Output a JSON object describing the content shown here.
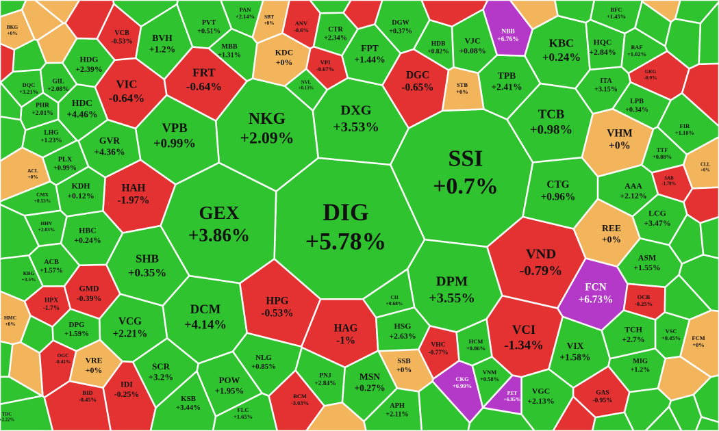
{
  "cells": [
    {
      "ticker": "DIG",
      "change": "+5.78%",
      "color": "#2fc42f"
    },
    {
      "ticker": "SSI",
      "change": "+0.7%",
      "color": "#2fc42f"
    },
    {
      "ticker": "GEX",
      "change": "+3.86%",
      "color": "#2fc42f"
    },
    {
      "ticker": "NKG",
      "change": "+2.09%",
      "color": "#2fc42f"
    },
    {
      "ticker": "DXG",
      "change": "+3.53%",
      "color": "#2fc42f"
    },
    {
      "ticker": "VPB",
      "change": "+0.99%",
      "color": "#2fc42f"
    },
    {
      "ticker": "VIC",
      "change": "-0.64%",
      "color": "#e43232"
    },
    {
      "ticker": "FRT",
      "change": "-0.64%",
      "color": "#e43232"
    },
    {
      "ticker": "HAH",
      "change": "-1.97%",
      "color": "#e43232"
    },
    {
      "ticker": "SHB",
      "change": "+0.35%",
      "color": "#2fc42f"
    },
    {
      "ticker": "DCM",
      "change": "+4.14%",
      "color": "#2fc42f"
    },
    {
      "ticker": "HPG",
      "change": "-0.53%",
      "color": "#e43232"
    },
    {
      "ticker": "HAG",
      "change": "-1%",
      "color": "#e43232"
    },
    {
      "ticker": "DPM",
      "change": "+3.55%",
      "color": "#2fc42f"
    },
    {
      "ticker": "VND",
      "change": "-0.79%",
      "color": "#e43232"
    },
    {
      "ticker": "VCI",
      "change": "-1.34%",
      "color": "#e43232"
    },
    {
      "ticker": "TCB",
      "change": "+0.98%",
      "color": "#2fc42f"
    },
    {
      "ticker": "CTG",
      "change": "+0.96%",
      "color": "#2fc42f"
    },
    {
      "ticker": "KBC",
      "change": "+0.24%",
      "color": "#2fc42f"
    },
    {
      "ticker": "VHM",
      "change": "+0%",
      "color": "#f3b55c"
    },
    {
      "ticker": "REE",
      "change": "+0%",
      "color": "#f3b55c"
    },
    {
      "ticker": "FCN",
      "change": "+6.73%",
      "color": "#b439c9",
      "text_color": "#ffffff"
    },
    {
      "ticker": "DGC",
      "change": "-0.65%",
      "color": "#e43232"
    },
    {
      "ticker": "VCG",
      "change": "+2.21%",
      "color": "#2fc42f"
    },
    {
      "ticker": "GVR",
      "change": "+4.36%",
      "color": "#2fc42f"
    },
    {
      "ticker": "HDC",
      "change": "+4.46%",
      "color": "#2fc42f"
    },
    {
      "ticker": "HDG",
      "change": "+2.39%",
      "color": "#2fc42f"
    },
    {
      "ticker": "BVH",
      "change": "+1.2%",
      "color": "#2fc42f"
    },
    {
      "ticker": "KDC",
      "change": "+0%",
      "color": "#f3b55c"
    },
    {
      "ticker": "FPT",
      "change": "+1.44%",
      "color": "#2fc42f"
    },
    {
      "ticker": "DGW",
      "change": "+0.37%",
      "color": "#2fc42f"
    },
    {
      "ticker": "VJC",
      "change": "+0.08%",
      "color": "#2fc42f"
    },
    {
      "ticker": "TPB",
      "change": "+2.41%",
      "color": "#2fc42f"
    },
    {
      "ticker": "HQC",
      "change": "+2.84%",
      "color": "#2fc42f"
    },
    {
      "ticker": "ITA",
      "change": "+3.15%",
      "color": "#2fc42f"
    },
    {
      "ticker": "LPB",
      "change": "+0.34%",
      "color": "#2fc42f"
    },
    {
      "ticker": "AAA",
      "change": "+2.12%",
      "color": "#2fc42f"
    },
    {
      "ticker": "LCG",
      "change": "+3.47%",
      "color": "#2fc42f"
    },
    {
      "ticker": "ASM",
      "change": "+1.55%",
      "color": "#2fc42f"
    },
    {
      "ticker": "TCH",
      "change": "+2.7%",
      "color": "#2fc42f"
    },
    {
      "ticker": "VIX",
      "change": "+1.58%",
      "color": "#2fc42f"
    },
    {
      "ticker": "MIG",
      "change": "+1.2%",
      "color": "#2fc42f"
    },
    {
      "ticker": "VGC",
      "change": "+2.13%",
      "color": "#2fc42f"
    },
    {
      "ticker": "PET",
      "change": "+6.95%",
      "color": "#b439c9",
      "text_color": "#ffffff"
    },
    {
      "ticker": "CKG",
      "change": "+6.99%",
      "color": "#b439c9",
      "text_color": "#ffffff"
    },
    {
      "ticker": "VHC",
      "change": "-0.77%",
      "color": "#e43232"
    },
    {
      "ticker": "HCM",
      "change": "+0.86%",
      "color": "#2fc42f"
    },
    {
      "ticker": "VNM",
      "change": "+0.58%",
      "color": "#2fc42f"
    },
    {
      "ticker": "SSB",
      "change": "+0%",
      "color": "#f3b55c"
    },
    {
      "ticker": "MSN",
      "change": "+0.27%",
      "color": "#2fc42f"
    },
    {
      "ticker": "HSG",
      "change": "+2.63%",
      "color": "#2fc42f"
    },
    {
      "ticker": "CII",
      "change": "+0.68%",
      "color": "#2fc42f"
    },
    {
      "ticker": "PNJ",
      "change": "+2.84%",
      "color": "#2fc42f"
    },
    {
      "ticker": "NLG",
      "change": "+0.85%",
      "color": "#2fc42f"
    },
    {
      "ticker": "POW",
      "change": "+1.95%",
      "color": "#2fc42f"
    },
    {
      "ticker": "SCR",
      "change": "+3.2%",
      "color": "#2fc42f"
    },
    {
      "ticker": "KSB",
      "change": "+3.44%",
      "color": "#2fc42f"
    },
    {
      "ticker": "FLC",
      "change": "+1.65%",
      "color": "#2fc42f"
    },
    {
      "ticker": "BCM",
      "change": "-3.03%",
      "color": "#e43232"
    },
    {
      "ticker": "APH",
      "change": "+2.11%",
      "color": "#2fc42f"
    },
    {
      "ticker": "IDI",
      "change": "-0.25%",
      "color": "#e43232"
    },
    {
      "ticker": "VRE",
      "change": "+0%",
      "color": "#f3b55c"
    },
    {
      "ticker": "DPG",
      "change": "+1.59%",
      "color": "#2fc42f"
    },
    {
      "ticker": "GMD",
      "change": "-0.39%",
      "color": "#e43232"
    },
    {
      "ticker": "HPX",
      "change": "-1.7%",
      "color": "#e43232"
    },
    {
      "ticker": "ACB",
      "change": "+1.57%",
      "color": "#2fc42f"
    },
    {
      "ticker": "HBC",
      "change": "+0.24%",
      "color": "#2fc42f"
    },
    {
      "ticker": "KDH",
      "change": "+0.12%",
      "color": "#2fc42f"
    },
    {
      "ticker": "PLX",
      "change": "+0.99%",
      "color": "#2fc42f"
    },
    {
      "ticker": "LHG",
      "change": "+1.23%",
      "color": "#2fc42f"
    },
    {
      "ticker": "PHR",
      "change": "+2.01%",
      "color": "#2fc42f"
    },
    {
      "ticker": "GIL",
      "change": "+2.08%",
      "color": "#2fc42f"
    },
    {
      "ticker": "DQC",
      "change": "+3.21%",
      "color": "#2fc42f"
    },
    {
      "ticker": "MBB",
      "change": "+1.31%",
      "color": "#2fc42f"
    },
    {
      "ticker": "PVT",
      "change": "+0.51%",
      "color": "#2fc42f"
    },
    {
      "ticker": "PAN",
      "change": "+2.14%",
      "color": "#2fc42f"
    },
    {
      "ticker": "SBT",
      "change": "+0%",
      "color": "#f3b55c"
    },
    {
      "ticker": "ANV",
      "change": "-0.6%",
      "color": "#e43232"
    },
    {
      "ticker": "CTR",
      "change": "+2.34%",
      "color": "#2fc42f"
    },
    {
      "ticker": "VPI",
      "change": "-0.67%",
      "color": "#e43232"
    },
    {
      "ticker": "NVL",
      "change": "+0.13%",
      "color": "#2fc42f"
    },
    {
      "ticker": "STB",
      "change": "+0%",
      "color": "#f3b55c"
    },
    {
      "ticker": "HDB",
      "change": "+0.82%",
      "color": "#2fc42f"
    },
    {
      "ticker": "NBB",
      "change": "+6.76%",
      "color": "#b439c9",
      "text_color": "#ffffff"
    },
    {
      "ticker": "GEG",
      "change": "-0.9%",
      "color": "#e43232"
    },
    {
      "ticker": "FIR",
      "change": "+1.18%",
      "color": "#2fc42f"
    },
    {
      "ticker": "TTF",
      "change": "+0.88%",
      "color": "#2fc42f"
    },
    {
      "ticker": "SAB",
      "change": "-1.78%",
      "color": "#e43232"
    },
    {
      "ticker": "CLL",
      "change": "+0%",
      "color": "#f3b55c"
    },
    {
      "ticker": "OCB",
      "change": "-0.25%",
      "color": "#e43232"
    },
    {
      "ticker": "VSC",
      "change": "+0.45%",
      "color": "#2fc42f"
    },
    {
      "ticker": "FCM",
      "change": "+0%",
      "color": "#f3b55c"
    },
    {
      "ticker": "GAS",
      "change": "-0.95%",
      "color": "#e43232"
    },
    {
      "ticker": "ACL",
      "change": "+0%",
      "color": "#f3b55c"
    },
    {
      "ticker": "VCB",
      "change": "-0.53%",
      "color": "#e43232"
    },
    {
      "ticker": "BKG",
      "change": "+0%",
      "color": "#f3b55c"
    },
    {
      "ticker": "BFC",
      "change": "+1.45%",
      "color": "#2fc42f"
    },
    {
      "ticker": "BAF",
      "change": "+1.02%",
      "color": "#2fc42f"
    },
    {
      "ticker": "CMX",
      "change": "+0.53%",
      "color": "#2fc42f"
    },
    {
      "ticker": "HHV",
      "change": "+2.03%",
      "color": "#2fc42f"
    },
    {
      "ticker": "KBG",
      "change": "+3.5%",
      "color": "#2fc42f"
    },
    {
      "ticker": "HMC",
      "change": "+0%",
      "color": "#f3b55c"
    },
    {
      "ticker": "OGC",
      "change": "-0.41%",
      "color": "#e43232"
    },
    {
      "ticker": "BID",
      "change": "-0.45%",
      "color": "#e43232"
    },
    {
      "ticker": "TDC",
      "change": "+2.22%",
      "color": "#2fc42f"
    }
  ]
}
